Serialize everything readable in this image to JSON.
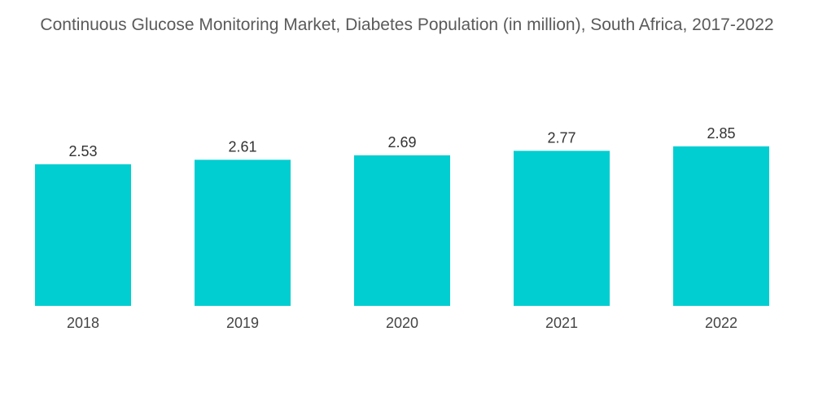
{
  "chart_data": {
    "type": "bar",
    "title": "Continuous Glucose Monitoring Market, Diabetes Population (in million), South Africa, 2017-2022",
    "categories": [
      "2018",
      "2019",
      "2020",
      "2021",
      "2022"
    ],
    "values": [
      2.53,
      2.61,
      2.69,
      2.77,
      2.85
    ],
    "value_labels": [
      "2.53",
      "2.61",
      "2.69",
      "2.77",
      "2.85"
    ],
    "xlabel": "",
    "ylabel": "",
    "ylim": [
      0,
      2.85
    ],
    "grid": false,
    "bar_color": "#00CED1"
  }
}
